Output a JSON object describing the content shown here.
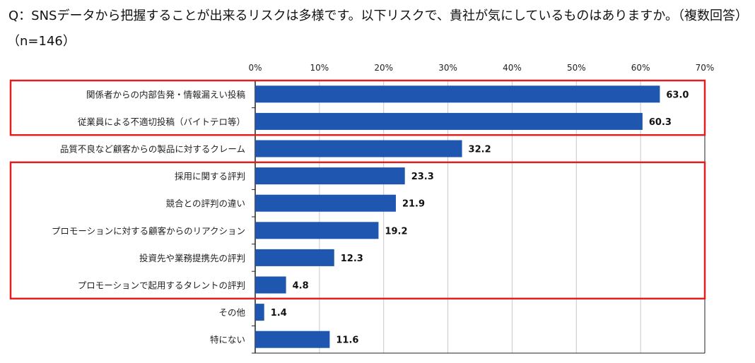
{
  "title": "Q：SNSデータから把握することが出来るリスクは多様です。以下リスクで、貴社が気にしているものはありますか。（複数回答）",
  "sample": "（n=146）",
  "chart_data": {
    "type": "bar",
    "orientation": "horizontal",
    "categories": [
      "関係者からの内部告発・情報漏えい投稿",
      "従業員による不適切投稿（バイトテロ等）",
      "品質不良など顧客からの製品に対するクレーム",
      "採用に関する評判",
      "競合との評判の違い",
      "プロモーションに対する顧客からのリアクション",
      "投資先や業務提携先の評判",
      "プロモーションで起用するタレントの評判",
      "その他",
      "特にない"
    ],
    "values": [
      63.0,
      60.3,
      32.2,
      23.3,
      21.9,
      19.2,
      12.3,
      4.8,
      1.4,
      11.6
    ],
    "value_labels": [
      "63.0",
      "60.3",
      "32.2",
      "23.3",
      "21.9",
      "19.2",
      "12.3",
      "4.8",
      "1.4",
      "11.6"
    ],
    "xlim": [
      0,
      70
    ],
    "ticks": [
      "0%",
      "10%",
      "20%",
      "30%",
      "40%",
      "50%",
      "60%",
      "70%"
    ],
    "bar_color": "#1f56b0",
    "highlight_color": "#e02020",
    "highlight_groups": [
      [
        0,
        1
      ],
      [
        3,
        7
      ]
    ],
    "grid": true
  }
}
